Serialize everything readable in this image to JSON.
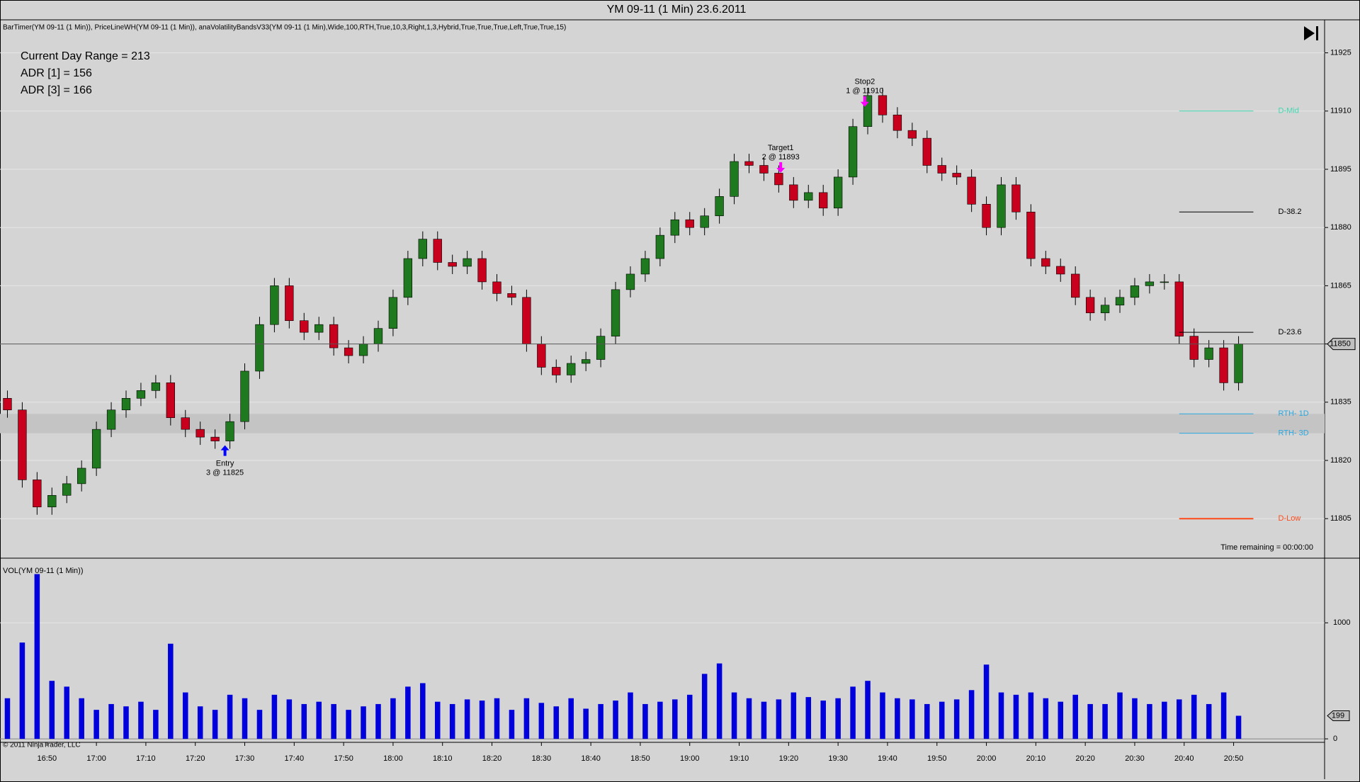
{
  "chart_data": [
    {
      "type": "candlestick",
      "title": "YM 09-11 (1 Min)  23.6.2011",
      "indicators": "BarTimer(YM 09-11 (1 Min)), PriceLineWH(YM 09-11 (1 Min)), anaVolatilityBandsV33(YM 09-11 (1 Min),Wide,100,RTH,True,10,3,Right,1,3,Hybrid,True,True,True,Left,True,True,15)",
      "info_lines": [
        "Current Day Range = 213",
        "ADR [1] = 156",
        "ADR [3] = 166"
      ],
      "time_remaining": "Time remaining = 00:00:00",
      "x": [
        42,
        45,
        48,
        51,
        54,
        57,
        60,
        63,
        66,
        69,
        72,
        75,
        78,
        81,
        84,
        87,
        90,
        93,
        96,
        99,
        102,
        105,
        108,
        111,
        114,
        117,
        120,
        123,
        126,
        129,
        132,
        135,
        138,
        141,
        144,
        147,
        150,
        153,
        156,
        159,
        162,
        165,
        168,
        171,
        174,
        177,
        180,
        183,
        186,
        189,
        192,
        195,
        198,
        201,
        204,
        207,
        210,
        213,
        216,
        219,
        222,
        225,
        228,
        231,
        234,
        237,
        240,
        243,
        246,
        249,
        252,
        255,
        258,
        261,
        264,
        267,
        270,
        273,
        276,
        279,
        282,
        285,
        288,
        291
      ],
      "open": [
        11836,
        11833,
        11815,
        11808,
        11811,
        11814,
        11818,
        11828,
        11833,
        11836,
        11838,
        11840,
        11831,
        11828,
        11826,
        11825,
        11830,
        11843,
        11855,
        11865,
        11856,
        11853,
        11855,
        11849,
        11847,
        11850,
        11854,
        11862,
        11872,
        11877,
        11871,
        11870,
        11872,
        11866,
        11863,
        11862,
        11850,
        11844,
        11842,
        11845,
        11846,
        11852,
        11864,
        11868,
        11872,
        11878,
        11882,
        11880,
        11883,
        11888,
        11897,
        11896,
        11894,
        11891,
        11887,
        11889,
        11885,
        11893,
        11906,
        11914,
        11909,
        11905,
        11903,
        11896,
        11894,
        11893,
        11886,
        11880,
        11891,
        11884,
        11872,
        11870,
        11868,
        11862,
        11858,
        11860,
        11862,
        11865,
        11866,
        11866,
        11852,
        11846,
        11849,
        11840
      ],
      "high": [
        11838,
        11835,
        11817,
        11813,
        11816,
        11820,
        11830,
        11835,
        11838,
        11840,
        11842,
        11842,
        11833,
        11830,
        11828,
        11832,
        11845,
        11857,
        11867,
        11867,
        11858,
        11857,
        11857,
        11851,
        11852,
        11856,
        11864,
        11874,
        11879,
        11879,
        11873,
        11874,
        11874,
        11868,
        11865,
        11864,
        11852,
        11846,
        11847,
        11848,
        11854,
        11866,
        11870,
        11874,
        11880,
        11884,
        11884,
        11885,
        11890,
        11899,
        11899,
        11898,
        11896,
        11893,
        11891,
        11891,
        11895,
        11908,
        11916,
        11916,
        11911,
        11907,
        11905,
        11898,
        11896,
        11895,
        11888,
        11893,
        11893,
        11886,
        11874,
        11872,
        11870,
        11864,
        11862,
        11864,
        11867,
        11868,
        11868,
        11868,
        11854,
        11851,
        11851,
        11852
      ],
      "low": [
        11831,
        11813,
        11806,
        11806,
        11809,
        11812,
        11816,
        11826,
        11831,
        11834,
        11836,
        11829,
        11826,
        11824,
        11823,
        11823,
        11828,
        11841,
        11853,
        11854,
        11851,
        11851,
        11847,
        11845,
        11845,
        11848,
        11852,
        11860,
        11870,
        11869,
        11868,
        11868,
        11864,
        11861,
        11860,
        11848,
        11842,
        11840,
        11840,
        11843,
        11844,
        11850,
        11862,
        11866,
        11870,
        11876,
        11878,
        11878,
        11881,
        11886,
        11894,
        11892,
        11889,
        11885,
        11885,
        11883,
        11883,
        11891,
        11904,
        11907,
        11903,
        11901,
        11894,
        11892,
        11891,
        11884,
        11878,
        11878,
        11882,
        11870,
        11868,
        11866,
        11860,
        11856,
        11856,
        11858,
        11860,
        11863,
        11864,
        11850,
        11844,
        11844,
        11838,
        11838
      ],
      "close": [
        11833,
        11815,
        11808,
        11811,
        11814,
        11818,
        11828,
        11833,
        11836,
        11838,
        11840,
        11831,
        11828,
        11826,
        11825,
        11830,
        11843,
        11855,
        11865,
        11856,
        11853,
        11855,
        11849,
        11847,
        11850,
        11854,
        11862,
        11872,
        11877,
        11871,
        11870,
        11872,
        11866,
        11863,
        11862,
        11850,
        11844,
        11842,
        11845,
        11846,
        11852,
        11864,
        11868,
        11872,
        11878,
        11882,
        11880,
        11883,
        11888,
        11897,
        11896,
        11894,
        11891,
        11887,
        11889,
        11885,
        11893,
        11906,
        11914,
        11909,
        11905,
        11903,
        11896,
        11894,
        11893,
        11886,
        11880,
        11891,
        11884,
        11872,
        11870,
        11868,
        11862,
        11858,
        11860,
        11862,
        11865,
        11866,
        11866,
        11852,
        11846,
        11849,
        11840,
        11850
      ],
      "up_color": "#1f7a1f",
      "down_color": "#c8001e",
      "xlim": [
        40.5,
        308.4
      ],
      "ylim": [
        11795,
        11933.5
      ],
      "yticks": [
        11805,
        11820,
        11835,
        11850,
        11865,
        11880,
        11895,
        11910,
        11925
      ],
      "grid": true,
      "volatility_band": {
        "lower": 11827,
        "upper": 11832,
        "color": "#c4c4c4"
      },
      "level_xlim": [
        279,
        294
      ],
      "levels": [
        {
          "name": "D-Mid",
          "value": 11910,
          "color": "#3fd9b0",
          "label_color": "#3fd9b0"
        },
        {
          "name": "D-38.2",
          "value": 11884,
          "color": "#000000",
          "label_color": "#000000"
        },
        {
          "name": "D-23.6",
          "value": 11853,
          "color": "#000000",
          "label_color": "#000000"
        },
        {
          "name": "RTH- 1D",
          "value": 11832,
          "color": "#2aa8e0",
          "label_color": "#2aa8e0"
        },
        {
          "name": "RTH- 3D",
          "value": 11827,
          "color": "#2aa8e0",
          "label_color": "#2aa8e0"
        },
        {
          "name": "D-Low",
          "value": 11805,
          "color": "#ff4a1a",
          "label_color": "#ff4a1a"
        }
      ],
      "annotations": [
        {
          "label": "Entry",
          "detail": "3 @ 11825",
          "x": 86,
          "price": 11825,
          "direction": "up",
          "color": "#0000ff"
        },
        {
          "label": "Target1",
          "detail": "2 @ 11893",
          "x": 198.4,
          "price": 11893,
          "direction": "down",
          "color": "#ff00ff"
        },
        {
          "label": "Stop2",
          "detail": "1 @ 11910",
          "x": 215.4,
          "price": 11910,
          "direction": "down",
          "color": "#ff00ff"
        }
      ]
    },
    {
      "type": "bar",
      "title": "VOL(YM 09-11 (1 Min))",
      "values": [
        350,
        830,
        1420,
        500,
        450,
        350,
        250,
        300,
        280,
        320,
        250,
        820,
        400,
        280,
        250,
        380,
        350,
        250,
        380,
        340,
        300,
        320,
        300,
        250,
        280,
        300,
        350,
        450,
        480,
        320,
        300,
        340,
        330,
        350,
        250,
        350,
        310,
        280,
        350,
        260,
        300,
        330,
        400,
        300,
        320,
        340,
        380,
        560,
        650,
        400,
        350,
        320,
        340,
        400,
        360,
        330,
        350,
        450,
        500,
        400,
        350,
        340,
        300,
        320,
        340,
        420,
        640,
        400,
        380,
        400,
        350,
        320,
        380,
        300,
        300,
        400,
        350,
        300,
        320,
        340,
        380,
        300,
        400,
        199
      ],
      "color": "#0000dd",
      "xlim": [
        40.5,
        308.4
      ],
      "ylim": [
        -30,
        1545
      ],
      "yticks": [
        0,
        1000
      ],
      "xticks": [
        {
          "value": 50,
          "label": "16:50"
        },
        {
          "value": 60,
          "label": "17:00"
        },
        {
          "value": 70,
          "label": "17:10"
        },
        {
          "value": 80,
          "label": "17:20"
        },
        {
          "value": 90,
          "label": "17:30"
        },
        {
          "value": 100,
          "label": "17:40"
        },
        {
          "value": 110,
          "label": "17:50"
        },
        {
          "value": 120,
          "label": "18:00"
        },
        {
          "value": 130,
          "label": "18:10"
        },
        {
          "value": 140,
          "label": "18:20"
        },
        {
          "value": 150,
          "label": "18:30"
        },
        {
          "value": 160,
          "label": "18:40"
        },
        {
          "value": 170,
          "label": "18:50"
        },
        {
          "value": 180,
          "label": "19:00"
        },
        {
          "value": 190,
          "label": "19:10"
        },
        {
          "value": 200,
          "label": "19:20"
        },
        {
          "value": 210,
          "label": "19:30"
        },
        {
          "value": 220,
          "label": "19:40"
        },
        {
          "value": 230,
          "label": "19:50"
        },
        {
          "value": 240,
          "label": "20:00"
        },
        {
          "value": 250,
          "label": "20:10"
        },
        {
          "value": 260,
          "label": "20:20"
        },
        {
          "value": 270,
          "label": "20:30"
        },
        {
          "value": 280,
          "label": "20:40"
        },
        {
          "value": 290,
          "label": "20:50"
        }
      ],
      "footer": "© 2011 NinjaTrader, LLC"
    }
  ]
}
